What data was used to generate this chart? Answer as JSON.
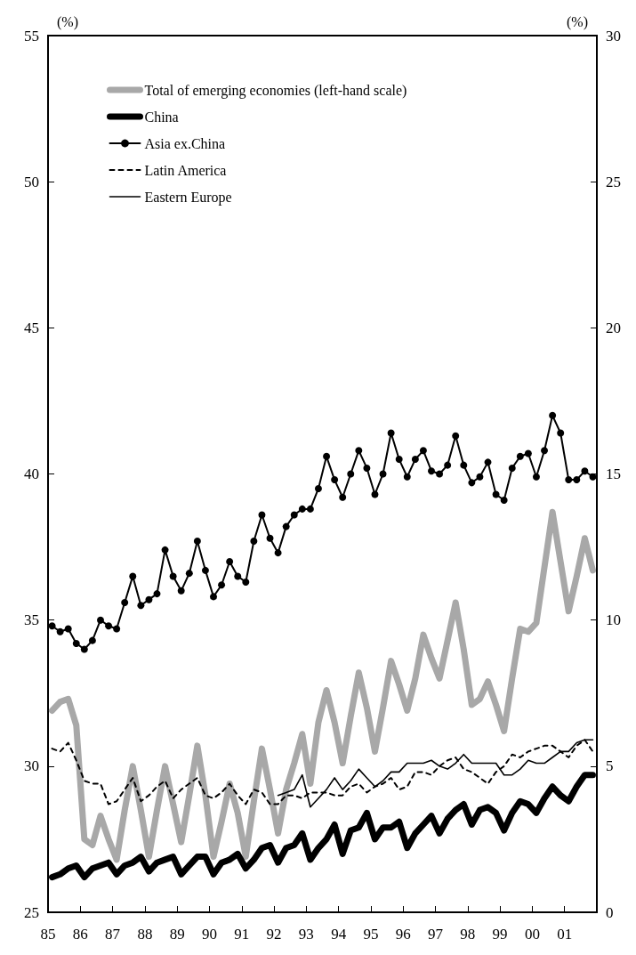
{
  "chart_data": {
    "type": "line",
    "ylabel": "(%)",
    "y2label": "(%)",
    "ylim": [
      25,
      55
    ],
    "yticks": [
      25,
      30,
      35,
      40,
      45,
      50,
      55
    ],
    "y2lim": [
      0,
      30
    ],
    "y2ticks": [
      0,
      5,
      10,
      15,
      20,
      25,
      30
    ],
    "xlim": [
      1985,
      2002
    ],
    "xticks": [
      {
        "value": 1985,
        "label": "85"
      },
      {
        "value": 1986,
        "label": "86"
      },
      {
        "value": 1987,
        "label": "87"
      },
      {
        "value": 1988,
        "label": "88"
      },
      {
        "value": 1989,
        "label": "89"
      },
      {
        "value": 1990,
        "label": "90"
      },
      {
        "value": 1991,
        "label": "91"
      },
      {
        "value": 1992,
        "label": "92"
      },
      {
        "value": 1993,
        "label": "93"
      },
      {
        "value": 1994,
        "label": "94"
      },
      {
        "value": 1995,
        "label": "95"
      },
      {
        "value": 1996,
        "label": "96"
      },
      {
        "value": 1997,
        "label": "97"
      },
      {
        "value": 1998,
        "label": "98"
      },
      {
        "value": 1999,
        "label": "99"
      },
      {
        "value": 2000,
        "label": "00"
      },
      {
        "value": 2001,
        "label": "01"
      }
    ],
    "x": [
      1985.125,
      1985.375,
      1985.625,
      1985.875,
      1986.125,
      1986.375,
      1986.625,
      1986.875,
      1987.125,
      1987.375,
      1987.625,
      1987.875,
      1988.125,
      1988.375,
      1988.625,
      1988.875,
      1989.125,
      1989.375,
      1989.625,
      1989.875,
      1990.125,
      1990.375,
      1990.625,
      1990.875,
      1991.125,
      1991.375,
      1991.625,
      1991.875,
      1992.125,
      1992.375,
      1992.625,
      1992.875,
      1993.125,
      1993.375,
      1993.625,
      1993.875,
      1994.125,
      1994.375,
      1994.625,
      1994.875,
      1995.125,
      1995.375,
      1995.625,
      1995.875,
      1996.125,
      1996.375,
      1996.625,
      1996.875,
      1997.125,
      1997.375,
      1997.625,
      1997.875,
      1998.125,
      1998.375,
      1998.625,
      1998.875,
      1999.125,
      1999.375,
      1999.625,
      1999.875,
      2000.125,
      2000.375,
      2000.625,
      2000.875,
      2001.125,
      2001.375,
      2001.625,
      2001.875
    ],
    "grid": false,
    "legend": "top left",
    "series": [
      {
        "name": "Total of emerging economies (left-hand scale)",
        "color": "#a8a8a8",
        "marker": "none",
        "line_style": "solid",
        "values": [
          31.9,
          32.2,
          32.3,
          31.4,
          27.5,
          27.3,
          28.3,
          27.5,
          26.8,
          28.5,
          30.0,
          28.5,
          26.9,
          28.5,
          30.0,
          28.7,
          27.4,
          29.0,
          30.7,
          29.0,
          26.9,
          28.1,
          29.4,
          28.4,
          26.9,
          28.8,
          30.6,
          29.2,
          27.7,
          29.2,
          30.1,
          31.1,
          29.4,
          31.5,
          32.6,
          31.5,
          30.1,
          31.7,
          33.2,
          32.0,
          30.5,
          32.0,
          33.6,
          32.8,
          31.9,
          33.0,
          34.5,
          33.7,
          33.0,
          34.3,
          35.6,
          34.0,
          32.1,
          32.3,
          32.9,
          32.1,
          31.2,
          33.0,
          34.7,
          34.6,
          34.9,
          36.8,
          38.7,
          37.0,
          35.3,
          36.5,
          37.8,
          36.7
        ]
      },
      {
        "name": "China",
        "color": "#000000",
        "axis": "y2",
        "marker": "none",
        "line_style": "solid",
        "values": [
          1.2,
          1.3,
          1.5,
          1.6,
          1.2,
          1.5,
          1.6,
          1.7,
          1.3,
          1.6,
          1.7,
          1.9,
          1.4,
          1.7,
          1.8,
          1.9,
          1.3,
          1.6,
          1.9,
          1.9,
          1.3,
          1.7,
          1.8,
          2.0,
          1.5,
          1.8,
          2.2,
          2.3,
          1.7,
          2.2,
          2.3,
          2.7,
          1.8,
          2.2,
          2.5,
          3.0,
          2.0,
          2.8,
          2.9,
          3.4,
          2.5,
          2.9,
          2.9,
          3.1,
          2.2,
          2.7,
          3.0,
          3.3,
          2.7,
          3.2,
          3.5,
          3.7,
          3.0,
          3.5,
          3.6,
          3.4,
          2.8,
          3.4,
          3.8,
          3.7,
          3.4,
          3.9,
          4.3,
          4.0,
          3.8,
          4.3,
          4.7,
          4.7
        ]
      },
      {
        "name": "Asia ex.China",
        "color": "#000000",
        "axis": "y2",
        "marker": "circle",
        "line_style": "solid",
        "values": [
          9.8,
          9.6,
          9.7,
          9.2,
          9.0,
          9.3,
          10.0,
          9.8,
          9.7,
          10.6,
          11.5,
          10.5,
          10.7,
          10.9,
          12.4,
          11.5,
          11.0,
          11.6,
          12.7,
          11.7,
          10.8,
          11.2,
          12.0,
          11.5,
          11.3,
          12.7,
          13.6,
          12.8,
          12.3,
          13.2,
          13.6,
          13.8,
          13.8,
          14.5,
          15.6,
          14.8,
          14.2,
          15.0,
          15.8,
          15.2,
          14.3,
          15.0,
          16.4,
          15.5,
          14.9,
          15.5,
          15.8,
          15.1,
          15.0,
          15.3,
          16.3,
          15.3,
          14.7,
          14.9,
          15.4,
          14.3,
          14.1,
          15.2,
          15.6,
          15.7,
          14.9,
          15.8,
          17.0,
          16.4,
          14.8,
          14.8,
          15.1,
          14.9
        ]
      },
      {
        "name": "Latin America",
        "color": "#000000",
        "axis": "y2",
        "marker": "none",
        "line_style": "dashed",
        "values": [
          5.6,
          5.5,
          5.8,
          5.2,
          4.5,
          4.4,
          4.4,
          3.7,
          3.8,
          4.2,
          4.6,
          3.8,
          4.0,
          4.3,
          4.5,
          3.9,
          4.2,
          4.4,
          4.6,
          4.0,
          3.9,
          4.1,
          4.4,
          4.0,
          3.7,
          4.2,
          4.1,
          3.7,
          3.7,
          4.0,
          4.0,
          3.9,
          4.1,
          4.1,
          4.1,
          4.0,
          4.0,
          4.3,
          4.4,
          4.1,
          4.3,
          4.4,
          4.6,
          4.2,
          4.3,
          4.8,
          4.8,
          4.7,
          5.0,
          5.2,
          5.3,
          4.9,
          4.8,
          4.6,
          4.4,
          4.8,
          5.0,
          5.4,
          5.3,
          5.5,
          5.6,
          5.7,
          5.7,
          5.5,
          5.3,
          5.7,
          5.9,
          5.5
        ]
      },
      {
        "name": "Eastern Europe",
        "color": "#000000",
        "axis": "y2",
        "marker": "none",
        "line_style": "solid",
        "values": [
          null,
          null,
          null,
          null,
          null,
          null,
          null,
          null,
          null,
          null,
          null,
          null,
          null,
          null,
          null,
          null,
          null,
          null,
          null,
          null,
          null,
          null,
          null,
          null,
          null,
          null,
          null,
          null,
          4.0,
          4.1,
          4.2,
          4.7,
          3.6,
          3.9,
          4.2,
          4.6,
          4.2,
          4.5,
          4.9,
          4.6,
          4.3,
          4.5,
          4.8,
          4.8,
          5.1,
          5.1,
          5.1,
          5.2,
          5.0,
          4.9,
          5.1,
          5.4,
          5.1,
          5.1,
          5.1,
          5.1,
          4.7,
          4.7,
          4.9,
          5.2,
          5.1,
          5.1,
          5.3,
          5.5,
          5.5,
          5.8,
          5.9,
          5.9
        ]
      }
    ]
  }
}
